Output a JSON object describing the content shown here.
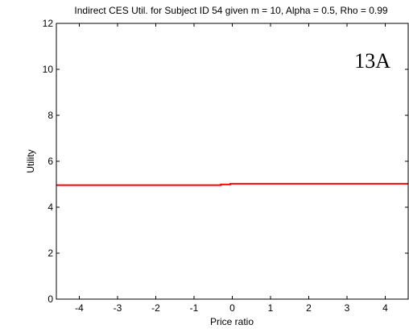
{
  "chart_data": {
    "type": "line",
    "title": "Indirect CES Util. for Subject ID 54 given m = 10, Alpha = 0.5, Rho = 0.99",
    "xlabel": "Price ratio",
    "ylabel": "Utility",
    "xlim": [
      -4.6,
      4.6
    ],
    "ylim": [
      0,
      12
    ],
    "xticks": [
      -4,
      -3,
      -2,
      -1,
      0,
      1,
      2,
      3,
      4
    ],
    "xtick_labels": [
      "-4",
      "-3",
      "-2",
      "-1",
      "0",
      "1",
      "2",
      "3",
      "4"
    ],
    "yticks": [
      0,
      2,
      4,
      6,
      8,
      10,
      12
    ],
    "ytick_labels": [
      "0",
      "2",
      "4",
      "6",
      "8",
      "10",
      "12"
    ],
    "grid": false,
    "annotation": "13A",
    "series": [
      {
        "color": "#ff0000",
        "x": [
          -4.6,
          -0.3,
          -0.3,
          -0.05,
          -0.05,
          4.6
        ],
        "y": [
          4.96,
          4.96,
          4.99,
          4.99,
          5.02,
          5.02
        ]
      }
    ]
  }
}
